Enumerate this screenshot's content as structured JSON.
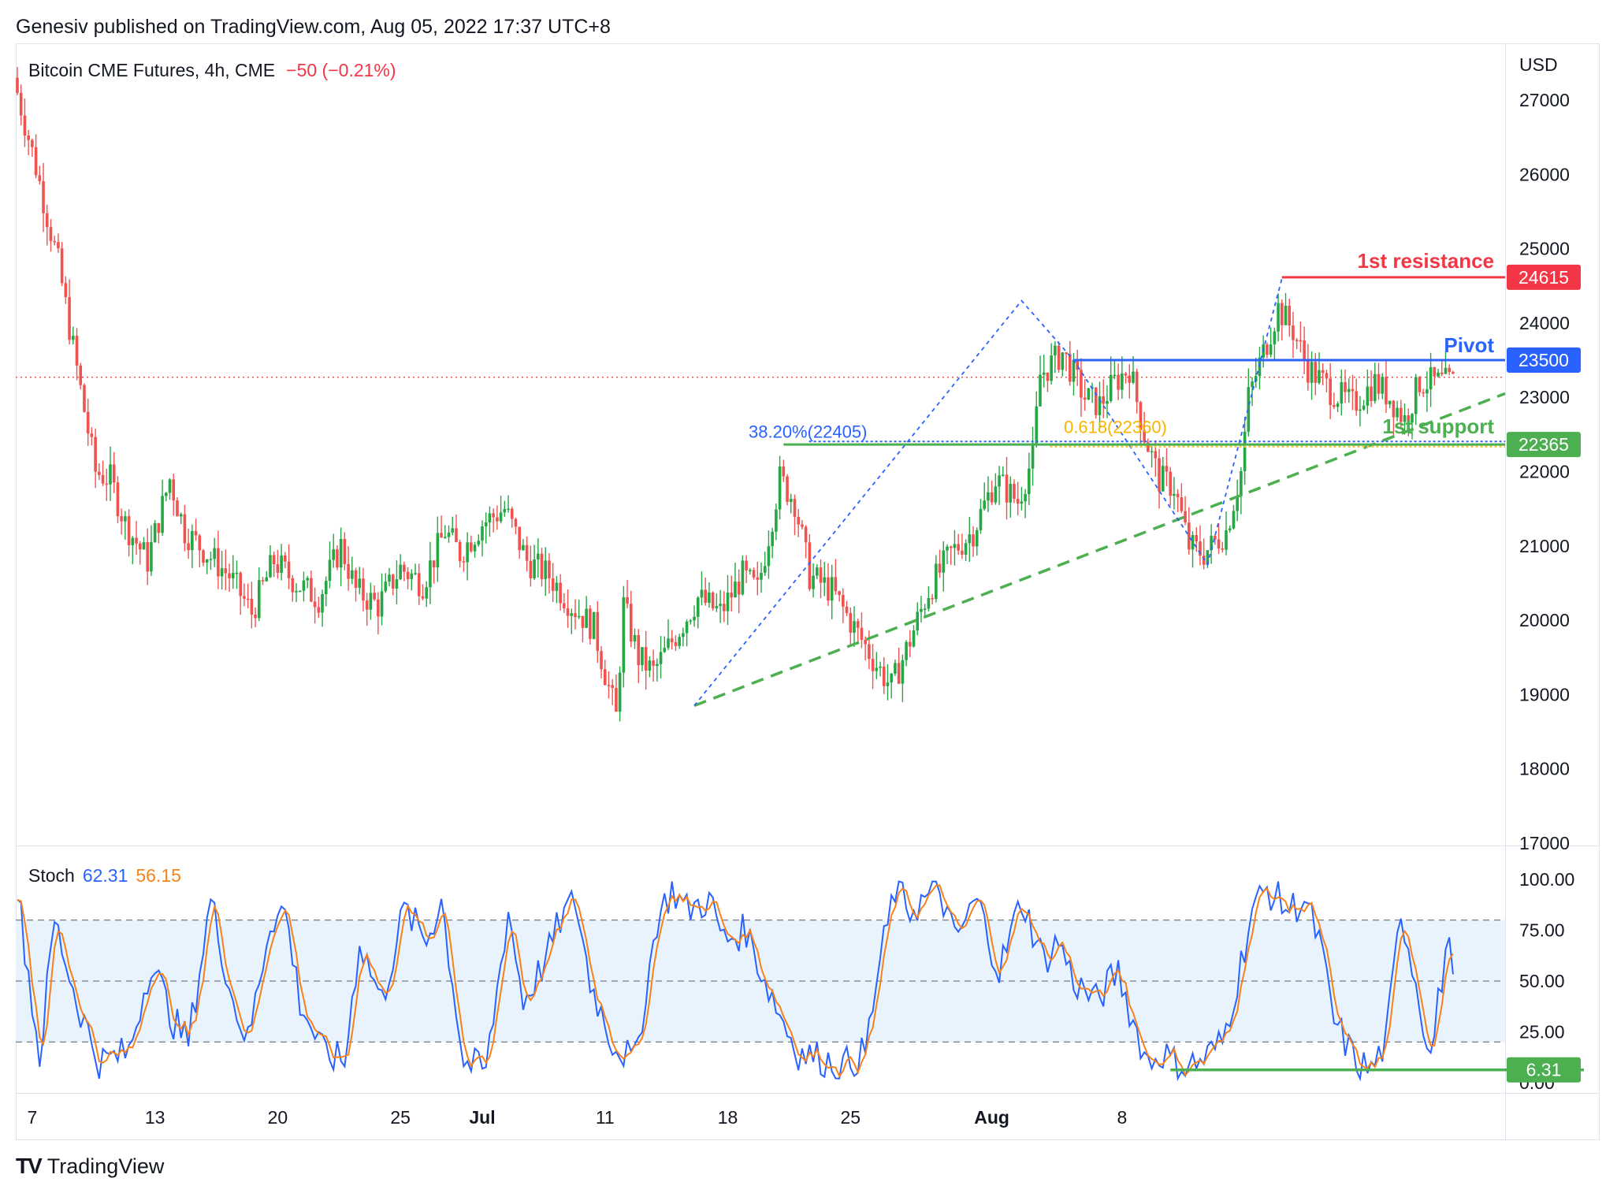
{
  "header": "Genesiv published on TradingView.com, Aug 05, 2022 17:37 UTC+8",
  "legend": {
    "symbol": "Bitcoin CME Futures, 4h, CME",
    "change": "−50 (−0.21%)"
  },
  "stoch_legend": {
    "label": "Stoch",
    "k": "62.31",
    "d": "56.15"
  },
  "footer": {
    "logo_mark": "TV",
    "brand": "TradingView"
  },
  "colors": {
    "up": "#26a644",
    "down": "#ef5350",
    "stoch_k": "#2962ff",
    "stoch_d": "#f7821b",
    "resistance": "#f23645",
    "pivot": "#2962ff",
    "support": "#4caf50"
  },
  "chart_data": [
    {
      "type": "candlestick",
      "currency_label": "USD",
      "y_ticks": [
        27000,
        26000,
        25000,
        24000,
        23000,
        22000,
        21000,
        20000,
        19000,
        18000,
        17000
      ],
      "ylim": [
        16700,
        27400
      ],
      "x_ticks": [
        "7",
        "13",
        "20",
        "25",
        "Jul",
        "11",
        "18",
        "25",
        "Aug",
        "8"
      ],
      "current_price": 23270,
      "anchors": [
        {
          "t": 0,
          "p": 27300
        },
        {
          "t": 6,
          "p": 26100
        },
        {
          "t": 12,
          "p": 24800
        },
        {
          "t": 18,
          "p": 23100
        },
        {
          "t": 22,
          "p": 22000
        },
        {
          "t": 26,
          "p": 21900
        },
        {
          "t": 30,
          "p": 21300
        },
        {
          "t": 36,
          "p": 20800
        },
        {
          "t": 42,
          "p": 21900
        },
        {
          "t": 46,
          "p": 21200
        },
        {
          "t": 52,
          "p": 20900
        },
        {
          "t": 58,
          "p": 20600
        },
        {
          "t": 64,
          "p": 20100
        },
        {
          "t": 70,
          "p": 20800
        },
        {
          "t": 76,
          "p": 20500
        },
        {
          "t": 82,
          "p": 20300
        },
        {
          "t": 88,
          "p": 21000
        },
        {
          "t": 92,
          "p": 20400
        },
        {
          "t": 98,
          "p": 20200
        },
        {
          "t": 104,
          "p": 20700
        },
        {
          "t": 110,
          "p": 20500
        },
        {
          "t": 116,
          "p": 21200
        },
        {
          "t": 120,
          "p": 20900
        },
        {
          "t": 126,
          "p": 21300
        },
        {
          "t": 132,
          "p": 21500
        },
        {
          "t": 138,
          "p": 20800
        },
        {
          "t": 144,
          "p": 20600
        },
        {
          "t": 150,
          "p": 20200
        },
        {
          "t": 156,
          "p": 19900
        },
        {
          "t": 162,
          "p": 18700
        },
        {
          "t": 164,
          "p": 20200
        },
        {
          "t": 168,
          "p": 19500
        },
        {
          "t": 172,
          "p": 19300
        },
        {
          "t": 178,
          "p": 19800
        },
        {
          "t": 184,
          "p": 20300
        },
        {
          "t": 190,
          "p": 20100
        },
        {
          "t": 196,
          "p": 20600
        },
        {
          "t": 200,
          "p": 20400
        },
        {
          "t": 206,
          "p": 21900
        },
        {
          "t": 210,
          "p": 21600
        },
        {
          "t": 214,
          "p": 20600
        },
        {
          "t": 220,
          "p": 20400
        },
        {
          "t": 226,
          "p": 19900
        },
        {
          "t": 232,
          "p": 19400
        },
        {
          "t": 236,
          "p": 19100
        },
        {
          "t": 240,
          "p": 19600
        },
        {
          "t": 246,
          "p": 20400
        },
        {
          "t": 252,
          "p": 20900
        },
        {
          "t": 258,
          "p": 21200
        },
        {
          "t": 264,
          "p": 21900
        },
        {
          "t": 270,
          "p": 21600
        },
        {
          "t": 274,
          "p": 22200
        },
        {
          "t": 276,
          "p": 23300
        },
        {
          "t": 282,
          "p": 23600
        },
        {
          "t": 288,
          "p": 23000
        },
        {
          "t": 292,
          "p": 22900
        },
        {
          "t": 296,
          "p": 23200
        },
        {
          "t": 300,
          "p": 23400
        },
        {
          "t": 304,
          "p": 22500
        },
        {
          "t": 308,
          "p": 21900
        },
        {
          "t": 312,
          "p": 21800
        },
        {
          "t": 316,
          "p": 21000
        },
        {
          "t": 320,
          "p": 20900
        },
        {
          "t": 326,
          "p": 21200
        },
        {
          "t": 330,
          "p": 22000
        },
        {
          "t": 332,
          "p": 23000
        },
        {
          "t": 336,
          "p": 23600
        },
        {
          "t": 340,
          "p": 24200
        },
        {
          "t": 344,
          "p": 23900
        },
        {
          "t": 348,
          "p": 23400
        },
        {
          "t": 354,
          "p": 23100
        },
        {
          "t": 360,
          "p": 22900
        },
        {
          "t": 366,
          "p": 23200
        },
        {
          "t": 370,
          "p": 23000
        },
        {
          "t": 374,
          "p": 22700
        },
        {
          "t": 378,
          "p": 23200
        }
      ],
      "annotations": {
        "resistance": {
          "price": 24615,
          "label": "1st resistance",
          "tag": "24615"
        },
        "pivot": {
          "price": 23500,
          "label": "Pivot",
          "tag": "23500"
        },
        "support": {
          "price": 22365,
          "label": "1st support",
          "tag": "22365"
        },
        "fib_382": {
          "price": 22405,
          "label": "38.20%(22405)"
        },
        "fib_618": {
          "price": 22360,
          "label": "0.618(22360)"
        }
      }
    },
    {
      "type": "line",
      "name": "Stoch",
      "y_ticks": [
        100,
        75,
        50,
        25,
        0
      ],
      "ylim": [
        -8,
        104
      ],
      "band": [
        20,
        80
      ],
      "level": {
        "value": 6.31,
        "tag": "6.31"
      },
      "k_anchors": [
        {
          "t": 0,
          "v": 95
        },
        {
          "t": 6,
          "v": 12
        },
        {
          "t": 10,
          "v": 80
        },
        {
          "t": 16,
          "v": 40
        },
        {
          "t": 22,
          "v": 10
        },
        {
          "t": 30,
          "v": 15
        },
        {
          "t": 36,
          "v": 60
        },
        {
          "t": 42,
          "v": 30
        },
        {
          "t": 46,
          "v": 20
        },
        {
          "t": 52,
          "v": 90
        },
        {
          "t": 58,
          "v": 40
        },
        {
          "t": 62,
          "v": 20
        },
        {
          "t": 68,
          "v": 80
        },
        {
          "t": 72,
          "v": 85
        },
        {
          "t": 76,
          "v": 40
        },
        {
          "t": 82,
          "v": 15
        },
        {
          "t": 88,
          "v": 10
        },
        {
          "t": 92,
          "v": 70
        },
        {
          "t": 98,
          "v": 40
        },
        {
          "t": 104,
          "v": 85
        },
        {
          "t": 110,
          "v": 70
        },
        {
          "t": 114,
          "v": 90
        },
        {
          "t": 120,
          "v": 10
        },
        {
          "t": 126,
          "v": 6
        },
        {
          "t": 132,
          "v": 85
        },
        {
          "t": 136,
          "v": 40
        },
        {
          "t": 142,
          "v": 60
        },
        {
          "t": 146,
          "v": 80
        },
        {
          "t": 150,
          "v": 90
        },
        {
          "t": 154,
          "v": 50
        },
        {
          "t": 160,
          "v": 20
        },
        {
          "t": 166,
          "v": 10
        },
        {
          "t": 172,
          "v": 80
        },
        {
          "t": 176,
          "v": 95
        },
        {
          "t": 180,
          "v": 85
        },
        {
          "t": 186,
          "v": 90
        },
        {
          "t": 190,
          "v": 70
        },
        {
          "t": 196,
          "v": 75
        },
        {
          "t": 200,
          "v": 55
        },
        {
          "t": 206,
          "v": 30
        },
        {
          "t": 210,
          "v": 15
        },
        {
          "t": 216,
          "v": 12
        },
        {
          "t": 222,
          "v": 8
        },
        {
          "t": 228,
          "v": 15
        },
        {
          "t": 232,
          "v": 60
        },
        {
          "t": 236,
          "v": 95
        },
        {
          "t": 240,
          "v": 85
        },
        {
          "t": 244,
          "v": 90
        },
        {
          "t": 248,
          "v": 95
        },
        {
          "t": 252,
          "v": 70
        },
        {
          "t": 258,
          "v": 90
        },
        {
          "t": 264,
          "v": 55
        },
        {
          "t": 270,
          "v": 90
        },
        {
          "t": 276,
          "v": 60
        },
        {
          "t": 280,
          "v": 70
        },
        {
          "t": 284,
          "v": 50
        },
        {
          "t": 290,
          "v": 40
        },
        {
          "t": 296,
          "v": 55
        },
        {
          "t": 300,
          "v": 30
        },
        {
          "t": 304,
          "v": 10
        },
        {
          "t": 308,
          "v": 15
        },
        {
          "t": 312,
          "v": 8
        },
        {
          "t": 318,
          "v": 10
        },
        {
          "t": 324,
          "v": 20
        },
        {
          "t": 328,
          "v": 50
        },
        {
          "t": 332,
          "v": 85
        },
        {
          "t": 336,
          "v": 95
        },
        {
          "t": 342,
          "v": 85
        },
        {
          "t": 346,
          "v": 90
        },
        {
          "t": 350,
          "v": 70
        },
        {
          "t": 354,
          "v": 30
        },
        {
          "t": 360,
          "v": 10
        },
        {
          "t": 364,
          "v": 6
        },
        {
          "t": 368,
          "v": 20
        },
        {
          "t": 372,
          "v": 85
        },
        {
          "t": 376,
          "v": 50
        },
        {
          "t": 380,
          "v": 12
        },
        {
          "t": 384,
          "v": 65
        },
        {
          "t": 386,
          "v": 62.31
        }
      ]
    }
  ]
}
